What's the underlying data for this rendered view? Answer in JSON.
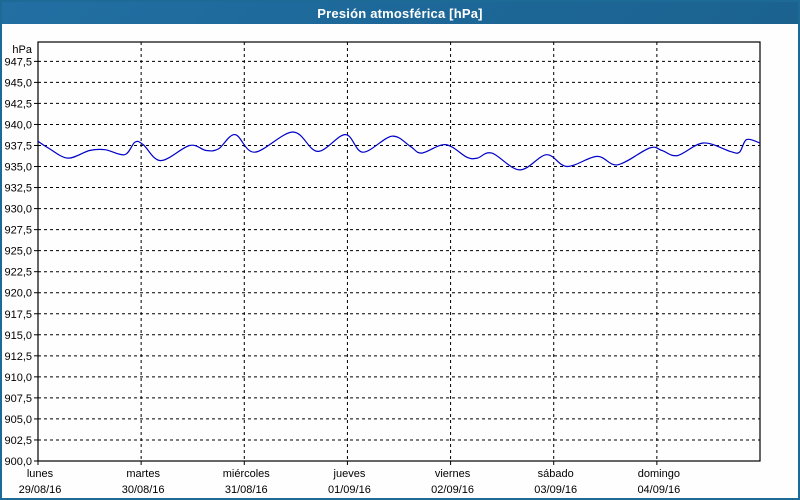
{
  "window": {
    "title": "Presión atmosférica [hPa]",
    "title_bar_color": "#1d6899",
    "border_color": "#1d6a96",
    "background": "#fdfefd"
  },
  "chart_data": {
    "type": "line",
    "title": "Presión atmosférica [hPa]",
    "ylabel": "hPa",
    "xlabel": "",
    "ylim": [
      900,
      949.8
    ],
    "y_tick_start": 947.5,
    "y_tick_step": 2.5,
    "y_tick_labels": [
      "947,5",
      "945,0",
      "942,5",
      "940,0",
      "937,5",
      "935,0",
      "932,5",
      "930,0",
      "927,5",
      "925,0",
      "922,5",
      "920,0",
      "917,5",
      "915,0",
      "912,5",
      "910,0",
      "907,5",
      "905,0",
      "902,5",
      "900,0"
    ],
    "grid": "dashed",
    "legend_position": "none",
    "line_color": "#0000c8",
    "x_axis_days": [
      {
        "name": "lunes",
        "date": "29/08/16"
      },
      {
        "name": "martes",
        "date": "30/08/16"
      },
      {
        "name": "miércoles",
        "date": "31/08/16"
      },
      {
        "name": "jueves",
        "date": "01/09/16"
      },
      {
        "name": "viernes",
        "date": "02/09/16"
      },
      {
        "name": "sábado",
        "date": "03/09/16"
      },
      {
        "name": "domingo",
        "date": "04/09/16"
      }
    ],
    "series": [
      {
        "name": "Presión atmosférica",
        "unit": "hPa",
        "x_days": [
          0.0,
          0.1,
          0.29,
          0.5,
          0.65,
          0.84,
          0.94,
          1.02,
          1.19,
          1.47,
          1.63,
          1.75,
          1.91,
          2.1,
          2.47,
          2.71,
          2.98,
          3.15,
          3.43,
          3.61,
          3.72,
          3.95,
          4.16,
          4.26,
          4.4,
          4.67,
          4.93,
          5.13,
          5.42,
          5.62,
          5.93,
          6.05,
          6.2,
          6.45,
          6.71,
          6.8,
          6.87,
          7.0
        ],
        "values_hpa": [
          938.0,
          937.2,
          936.0,
          936.9,
          937.0,
          936.4,
          937.9,
          937.6,
          935.7,
          937.5,
          936.9,
          937.1,
          938.8,
          936.7,
          939.1,
          936.8,
          938.8,
          936.7,
          938.6,
          937.4,
          936.6,
          937.6,
          936.1,
          936.0,
          936.6,
          934.6,
          936.4,
          935.0,
          936.2,
          935.2,
          937.2,
          936.9,
          936.3,
          937.8,
          936.8,
          936.7,
          938.2,
          937.8
        ]
      }
    ]
  }
}
